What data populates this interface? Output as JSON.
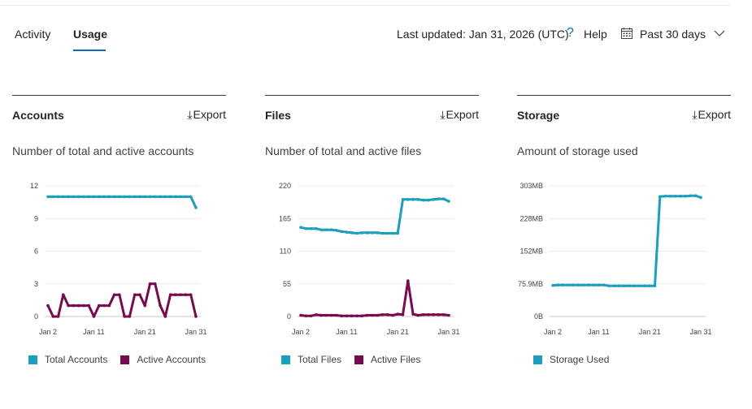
{
  "tabs": [
    {
      "label": "Activity",
      "active": false
    },
    {
      "label": "Usage",
      "active": true
    }
  ],
  "header": {
    "last_updated": "Last updated: Jan 31, 2026 (UTC)",
    "help_label": "Help",
    "date_range": "Past 30 days"
  },
  "icons": {
    "help": "question-icon",
    "calendar": "calendar-icon",
    "dropdown": "chevron-down-icon",
    "export": "download-icon"
  },
  "colors": {
    "teal": "#1a9fbf",
    "maroon": "#7a0a4f",
    "accent": "#0f6cbd"
  },
  "panels": [
    {
      "title": "Accounts",
      "export_label": "Export",
      "subtitle": "Number of total and active accounts",
      "chart_data": {
        "type": "line",
        "x": [
          "Jan 2",
          "Jan 3",
          "Jan 4",
          "Jan 5",
          "Jan 6",
          "Jan 7",
          "Jan 8",
          "Jan 9",
          "Jan 10",
          "Jan 11",
          "Jan 12",
          "Jan 13",
          "Jan 14",
          "Jan 15",
          "Jan 16",
          "Jan 17",
          "Jan 18",
          "Jan 19",
          "Jan 20",
          "Jan 21",
          "Jan 22",
          "Jan 23",
          "Jan 24",
          "Jan 25",
          "Jan 26",
          "Jan 27",
          "Jan 28",
          "Jan 29",
          "Jan 30",
          "Jan 31"
        ],
        "x_ticks": [
          "Jan 2",
          "Jan 11",
          "Jan 21",
          "Jan 31"
        ],
        "y_ticks": [
          "0",
          "3",
          "6",
          "9",
          "12"
        ],
        "ylim": [
          0,
          12
        ],
        "series": [
          {
            "name": "Total Accounts",
            "color": "#1a9fbf",
            "values": [
              11,
              11,
              11,
              11,
              11,
              11,
              11,
              11,
              11,
              11,
              11,
              11,
              11,
              11,
              11,
              11,
              11,
              11,
              11,
              11,
              11,
              11,
              11,
              11,
              11,
              11,
              11,
              11,
              11,
              10
            ]
          },
          {
            "name": "Active Accounts",
            "color": "#7a0a4f",
            "values": [
              1,
              0,
              0,
              2,
              1,
              1,
              1,
              1,
              1,
              0,
              1,
              1,
              1,
              2,
              2,
              0,
              0,
              2,
              2,
              1,
              3,
              3,
              1,
              0,
              2,
              2,
              2,
              2,
              2,
              0
            ]
          }
        ]
      }
    },
    {
      "title": "Files",
      "export_label": "Export",
      "subtitle": "Number of total and active files",
      "chart_data": {
        "type": "line",
        "x": [
          "Jan 2",
          "Jan 3",
          "Jan 4",
          "Jan 5",
          "Jan 6",
          "Jan 7",
          "Jan 8",
          "Jan 9",
          "Jan 10",
          "Jan 11",
          "Jan 12",
          "Jan 13",
          "Jan 14",
          "Jan 15",
          "Jan 16",
          "Jan 17",
          "Jan 18",
          "Jan 19",
          "Jan 20",
          "Jan 21",
          "Jan 22",
          "Jan 23",
          "Jan 24",
          "Jan 25",
          "Jan 26",
          "Jan 27",
          "Jan 28",
          "Jan 29",
          "Jan 30",
          "Jan 31"
        ],
        "x_ticks": [
          "Jan 2",
          "Jan 11",
          "Jan 21",
          "Jan 31"
        ],
        "y_ticks": [
          "0",
          "55",
          "110",
          "165",
          "220"
        ],
        "ylim": [
          0,
          220
        ],
        "series": [
          {
            "name": "Total Files",
            "color": "#1a9fbf",
            "values": [
              150,
              148,
              148,
              148,
              146,
              146,
              146,
              145,
              143,
              142,
              141,
              140,
              141,
              141,
              141,
              141,
              140,
              140,
              140,
              140,
              197,
              197,
              197,
              197,
              196,
              196,
              197,
              198,
              198,
              194
            ]
          },
          {
            "name": "Active Files",
            "color": "#7a0a4f",
            "values": [
              2,
              1,
              1,
              3,
              2,
              2,
              2,
              2,
              1,
              1,
              1,
              1,
              1,
              2,
              2,
              2,
              3,
              3,
              2,
              4,
              3,
              60,
              4,
              2,
              3,
              3,
              3,
              3,
              3,
              2
            ]
          }
        ]
      }
    },
    {
      "title": "Storage",
      "export_label": "Export",
      "subtitle": "Amount of storage used",
      "chart_data": {
        "type": "line",
        "x": [
          "Jan 2",
          "Jan 3",
          "Jan 4",
          "Jan 5",
          "Jan 6",
          "Jan 7",
          "Jan 8",
          "Jan 9",
          "Jan 10",
          "Jan 11",
          "Jan 12",
          "Jan 13",
          "Jan 14",
          "Jan 15",
          "Jan 16",
          "Jan 17",
          "Jan 18",
          "Jan 19",
          "Jan 20",
          "Jan 21",
          "Jan 22",
          "Jan 23",
          "Jan 24",
          "Jan 25",
          "Jan 26",
          "Jan 27",
          "Jan 28",
          "Jan 29",
          "Jan 30",
          "Jan 31"
        ],
        "x_ticks": [
          "Jan 2",
          "Jan 11",
          "Jan 21",
          "Jan 31"
        ],
        "y_ticks": [
          "0B",
          "75.9MB",
          "152MB",
          "228MB",
          "303MB"
        ],
        "ylim": [
          0,
          303
        ],
        "y_unit": "MB",
        "series": [
          {
            "name": "Storage Used",
            "color": "#1a9fbf",
            "values": [
              72,
              73,
              73,
              73,
              73,
              73,
              73,
              73,
              73,
              73,
              73,
              71,
              71,
              71,
              71,
              71,
              71,
              71,
              71,
              71,
              71,
              278,
              279,
              279,
              279,
              279,
              279,
              280,
              280,
              276
            ]
          }
        ]
      }
    }
  ]
}
